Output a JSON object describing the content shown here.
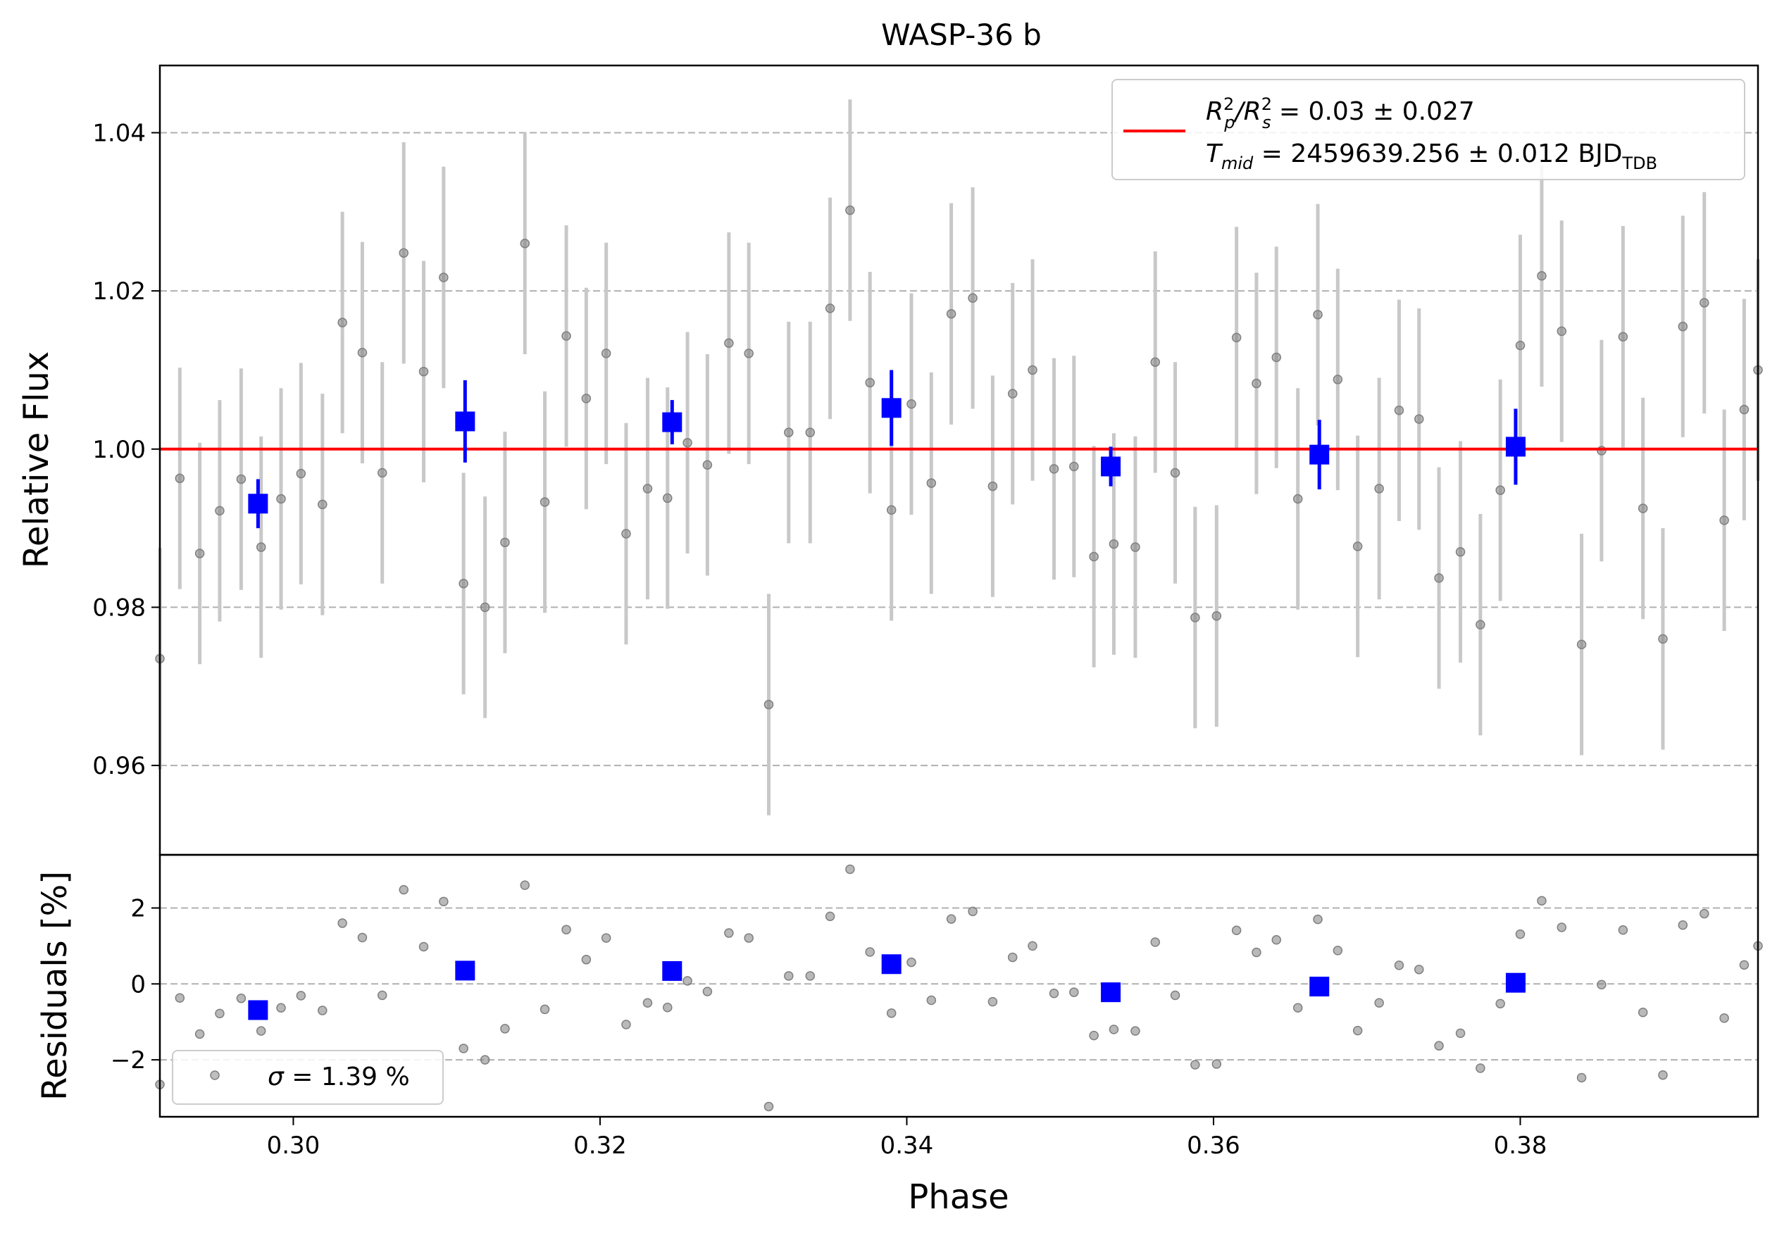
{
  "chart_data": [
    {
      "type": "scatter",
      "title": "WASP-36 b",
      "ylabel": "Relative Flux",
      "xlim": [
        0.2913,
        0.3955
      ],
      "ylim": [
        0.9487,
        1.0485
      ],
      "yticks": [
        0.96,
        0.98,
        1.0,
        1.02,
        1.04
      ],
      "ytick_labels": [
        "0.96",
        "0.98",
        "1.00",
        "1.02",
        "1.04"
      ],
      "grid": "y-dashed",
      "legend": {
        "placement": "top-right",
        "line1_prefix": "R",
        "line1_sub1": "p",
        "line1_mid": "/R",
        "line1_sub2": "s",
        "line1_sup": "2",
        "line1_value": " = 0.03 ± 0.027",
        "line2_prefix": "T",
        "line2_sub": "mid",
        "line2_value": " = 2459639.256 ± 0.012 BJD",
        "line2_unit_sub": "TDB"
      },
      "model": {
        "type": "line",
        "y": 1.0,
        "color": "#ff0000"
      },
      "raw_points": {
        "color": "#808080",
        "error_color": "#c8c8c8",
        "x": [
          0.2913,
          0.2926,
          0.2939,
          0.2952,
          0.2966,
          0.2979,
          0.2992,
          0.3005,
          0.3019,
          0.3032,
          0.3045,
          0.3058,
          0.3072,
          0.3085,
          0.3098,
          0.3111,
          0.3125,
          0.3138,
          0.3151,
          0.3164,
          0.3178,
          0.3191,
          0.3204,
          0.3217,
          0.3231,
          0.3244,
          0.3257,
          0.327,
          0.3284,
          0.3297,
          0.331,
          0.3323,
          0.3337,
          0.335,
          0.3363,
          0.3376,
          0.339,
          0.3403,
          0.3416,
          0.3429,
          0.3443,
          0.3456,
          0.3469,
          0.3482,
          0.3496,
          0.3509,
          0.3522,
          0.3535,
          0.3549,
          0.3562,
          0.3575,
          0.3588,
          0.3602,
          0.3615,
          0.3628,
          0.3641,
          0.3655,
          0.3668,
          0.3681,
          0.3694,
          0.3708,
          0.3721,
          0.3734,
          0.3747,
          0.3761,
          0.3774,
          0.3787,
          0.38,
          0.3814,
          0.3827,
          0.384,
          0.3853,
          0.3867,
          0.388,
          0.3893,
          0.3906,
          0.392,
          0.3933,
          0.3946,
          0.3955
        ],
        "y": [
          0.9735,
          0.9963,
          0.9868,
          0.9922,
          0.9962,
          0.9876,
          0.9937,
          0.9969,
          0.993,
          1.016,
          1.0122,
          0.997,
          1.0248,
          1.0098,
          1.0217,
          0.983,
          0.98,
          0.9882,
          1.026,
          0.9933,
          1.0143,
          1.0064,
          1.0121,
          0.9893,
          0.995,
          0.9938,
          1.0008,
          0.998,
          1.0134,
          1.0121,
          0.9677,
          1.0021,
          1.0021,
          1.0178,
          1.0302,
          1.0084,
          0.9923,
          1.0057,
          0.9957,
          1.0171,
          1.0191,
          0.9953,
          1.007,
          1.01,
          0.9975,
          0.9978,
          0.9864,
          0.988,
          0.9876,
          1.011,
          0.997,
          0.9787,
          0.9789,
          1.0141,
          1.0083,
          1.0116,
          0.9937,
          1.017,
          1.0088,
          0.9877,
          0.995,
          1.0049,
          1.0038,
          0.9837,
          0.987,
          0.9778,
          0.9948,
          1.0131,
          1.0219,
          1.0149,
          0.9753,
          0.9998,
          1.0142,
          0.9925,
          0.976,
          1.0155,
          1.0185,
          0.991,
          1.005,
          1.01
        ],
        "yerr": [
          0.014,
          0.014,
          0.014,
          0.014,
          0.014,
          0.014,
          0.014,
          0.014,
          0.014,
          0.014,
          0.014,
          0.014,
          0.014,
          0.014,
          0.014,
          0.014,
          0.014,
          0.014,
          0.014,
          0.014,
          0.014,
          0.014,
          0.014,
          0.014,
          0.014,
          0.014,
          0.014,
          0.014,
          0.014,
          0.014,
          0.014,
          0.014,
          0.014,
          0.014,
          0.014,
          0.014,
          0.014,
          0.014,
          0.014,
          0.014,
          0.014,
          0.014,
          0.014,
          0.014,
          0.014,
          0.014,
          0.014,
          0.014,
          0.014,
          0.014,
          0.014,
          0.014,
          0.014,
          0.014,
          0.014,
          0.014,
          0.014,
          0.014,
          0.014,
          0.014,
          0.014,
          0.014,
          0.014,
          0.014,
          0.014,
          0.014,
          0.014,
          0.014,
          0.014,
          0.014,
          0.014,
          0.014,
          0.014,
          0.014,
          0.014,
          0.014,
          0.014,
          0.014,
          0.014,
          0.014
        ]
      },
      "binned_points": {
        "color": "#0000ff",
        "x": [
          0.2977,
          0.3112,
          0.3247,
          0.339,
          0.3533,
          0.3669,
          0.3797
        ],
        "y": [
          0.9931,
          1.0035,
          1.0034,
          1.0052,
          0.9978,
          0.9993,
          1.0003
        ],
        "yerr": [
          0.0031,
          0.0052,
          0.0028,
          0.0048,
          0.0025,
          0.0044,
          0.0048
        ]
      }
    },
    {
      "type": "scatter",
      "xlabel": "Phase",
      "ylabel": "Residuals [%]",
      "xlim": [
        0.2913,
        0.3955
      ],
      "ylim": [
        -3.5,
        3.4
      ],
      "xticks": [
        0.3,
        0.32,
        0.34,
        0.36,
        0.38
      ],
      "xtick_labels": [
        "0.30",
        "0.32",
        "0.34",
        "0.36",
        "0.38"
      ],
      "yticks": [
        -2,
        0,
        2
      ],
      "ytick_labels": [
        "−2",
        "0",
        "2"
      ],
      "grid": "y-dashed",
      "legend": {
        "placement": "bottom-left",
        "sigma_symbol": "σ",
        "text": " = 1.39 %"
      },
      "residuals_note": "residual values derived from raw_points: (y - 1) * 100",
      "binned_residuals": {
        "x": [
          0.2977,
          0.3112,
          0.3247,
          0.339,
          0.3533,
          0.3669,
          0.3797
        ],
        "y": [
          -0.69,
          0.35,
          0.34,
          0.52,
          -0.22,
          -0.07,
          0.03
        ]
      }
    }
  ]
}
